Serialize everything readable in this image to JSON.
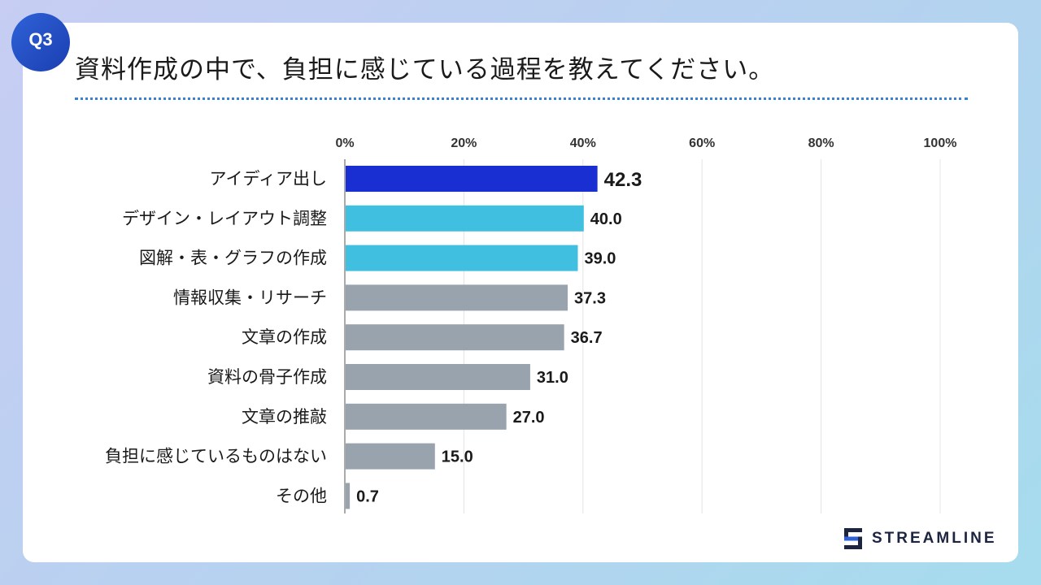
{
  "header": {
    "badge": "Q3",
    "title": "資料作成の中で、負担に感じている過程を教えてください。"
  },
  "brand": {
    "name": "STREAMLINE"
  },
  "colors": {
    "highlight": "#1a2fd1",
    "secondary": "#40bfe0",
    "default": "#98a3ad",
    "grid": "#e4e4e4"
  },
  "chart_data": {
    "type": "bar",
    "orientation": "horizontal",
    "title": "資料作成の中で、負担に感じている過程を教えてください。",
    "xlim": [
      0,
      100
    ],
    "x_ticks": [
      "0%",
      "20%",
      "40%",
      "60%",
      "80%",
      "100%"
    ],
    "categories": [
      "アイディア出し",
      "デザイン・レイアウト調整",
      "図解・表・グラフの作成",
      "情報収集・リサーチ",
      "文章の作成",
      "資料の骨子作成",
      "文章の推敲",
      "負担に感じているものはない",
      "その他"
    ],
    "values": [
      42.3,
      40.0,
      39.0,
      37.3,
      36.7,
      31.0,
      27.0,
      15.0,
      0.7
    ],
    "labels": [
      "42.3",
      "40.0",
      "39.0",
      "37.3",
      "36.7",
      "31.0",
      "27.0",
      "15.0",
      "0.7"
    ],
    "bar_color_keys": [
      "highlight",
      "secondary",
      "secondary",
      "default",
      "default",
      "default",
      "default",
      "default",
      "default"
    ],
    "legend": "none",
    "grid": true
  }
}
